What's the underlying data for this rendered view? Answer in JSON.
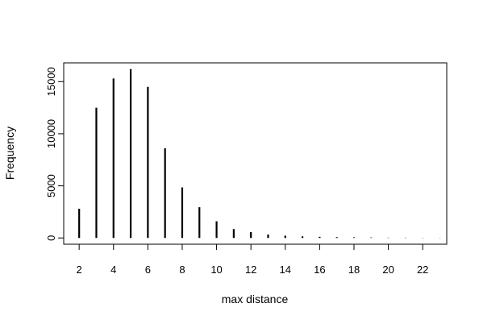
{
  "chart_data": {
    "type": "bar",
    "style": "vertical-lines",
    "title": "",
    "xlabel": "max distance",
    "ylabel": "Frequency",
    "xlim": [
      1.1,
      23.4
    ],
    "ylim": [
      -600,
      16800
    ],
    "x_ticks": [
      2,
      4,
      6,
      8,
      10,
      12,
      14,
      16,
      18,
      20,
      22
    ],
    "y_ticks": [
      0,
      5000,
      10000,
      15000
    ],
    "x": [
      2,
      3,
      4,
      5,
      6,
      7,
      8,
      9,
      10,
      11,
      12,
      13,
      14,
      15,
      16,
      17,
      18,
      19,
      20,
      21,
      22,
      23
    ],
    "values": [
      2800,
      12500,
      15300,
      16200,
      14500,
      8600,
      4850,
      2950,
      1600,
      850,
      560,
      330,
      220,
      150,
      110,
      80,
      60,
      45,
      30,
      25,
      20,
      15
    ],
    "grid": false,
    "legend": "none",
    "color": "#000000"
  }
}
